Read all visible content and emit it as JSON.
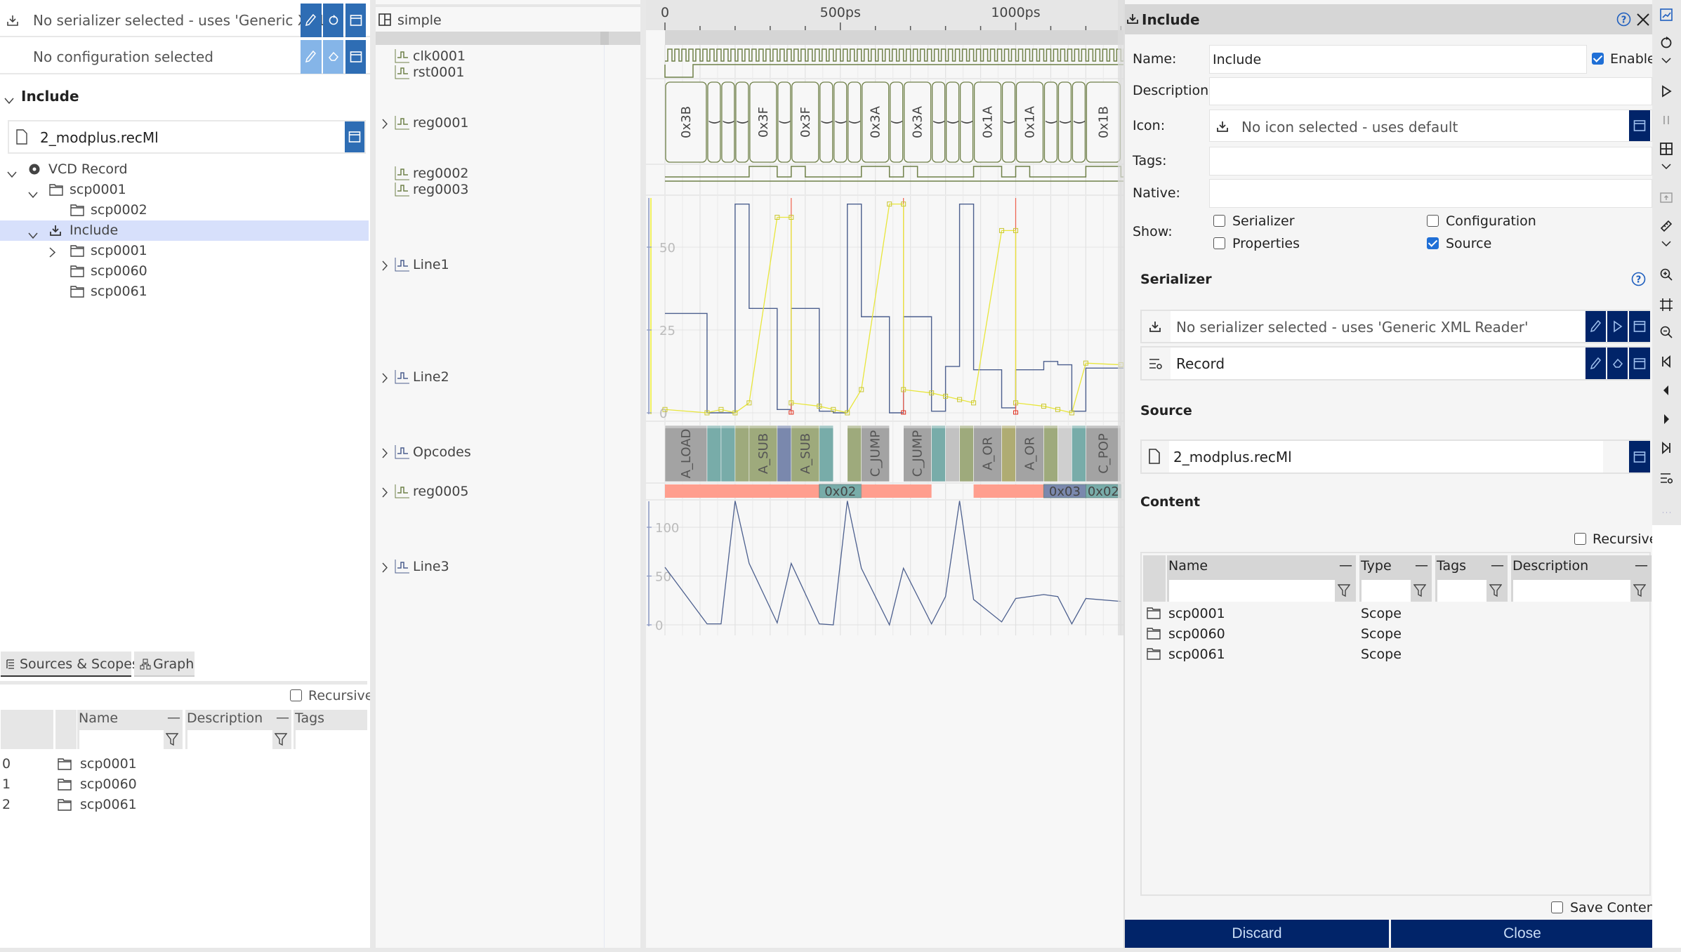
{
  "left": {
    "serializer_text": "No serializer selected - uses 'Generic XML",
    "config_text": "No configuration selected",
    "section_title": "Include",
    "source_file": "2_modplus.recMl",
    "tree": [
      {
        "label": "VCD Record",
        "depth": 0,
        "chevron": "down",
        "icon": "record-icon"
      },
      {
        "label": "scp0001",
        "depth": 1,
        "chevron": "down",
        "icon": "folder-icon"
      },
      {
        "label": "scp0002",
        "depth": 2,
        "chevron": "none",
        "icon": "folder-icon"
      },
      {
        "label": "Include",
        "depth": 1,
        "chevron": "down",
        "icon": "include-icon",
        "selected": true
      },
      {
        "label": "scp0001",
        "depth": 2,
        "chevron": "right",
        "icon": "folder-icon"
      },
      {
        "label": "scp0060",
        "depth": 2,
        "chevron": "none",
        "icon": "folder-icon"
      },
      {
        "label": "scp0061",
        "depth": 2,
        "chevron": "none",
        "icon": "folder-icon"
      }
    ],
    "tabs": [
      {
        "label": "Sources & Scopes",
        "icon": "list-icon",
        "active": true
      },
      {
        "label": "Graph",
        "icon": "graph-icon",
        "active": false
      }
    ],
    "recursive_label": "Recursive",
    "table": {
      "headers": [
        "Name",
        "Description",
        "Tags"
      ],
      "rows": [
        {
          "index": "0",
          "name": "scp0001"
        },
        {
          "index": "1",
          "name": "scp0060"
        },
        {
          "index": "2",
          "name": "scp0061"
        }
      ]
    }
  },
  "signals": {
    "panel_title": "simple",
    "items": [
      {
        "name": "clk0001",
        "expandable": false
      },
      {
        "name": "rst0001",
        "expandable": false
      },
      {
        "name": "reg0001",
        "expandable": true
      },
      {
        "name": "reg0002",
        "expandable": false
      },
      {
        "name": "reg0003",
        "expandable": false
      },
      {
        "name": "Line1",
        "expandable": true
      },
      {
        "name": "Line2",
        "expandable": true
      },
      {
        "name": "Opcodes",
        "expandable": true
      },
      {
        "name": "reg0005",
        "expandable": true
      },
      {
        "name": "Line3",
        "expandable": true
      }
    ]
  },
  "wave": {
    "ruler": [
      {
        "t": 0,
        "label": "0"
      },
      {
        "t": 500,
        "label": "500ps"
      },
      {
        "t": 1000,
        "label": "1000ps"
      }
    ],
    "clk_period_ps": 20,
    "rst_high_from_ps": 80,
    "reg0001": [
      {
        "s": 0,
        "e": 120,
        "label": "0x3B"
      },
      {
        "s": 120,
        "e": 160,
        "label": "("
      },
      {
        "s": 160,
        "e": 200,
        "label": "("
      },
      {
        "s": 200,
        "e": 240,
        "label": "("
      },
      {
        "s": 240,
        "e": 320,
        "label": "0x3F"
      },
      {
        "s": 320,
        "e": 360,
        "label": "("
      },
      {
        "s": 360,
        "e": 440,
        "label": "0x3F"
      },
      {
        "s": 440,
        "e": 480,
        "label": "("
      },
      {
        "s": 480,
        "e": 520,
        "label": "("
      },
      {
        "s": 520,
        "e": 560,
        "label": "("
      },
      {
        "s": 560,
        "e": 640,
        "label": "0x3A"
      },
      {
        "s": 640,
        "e": 680,
        "label": "("
      },
      {
        "s": 680,
        "e": 760,
        "label": "0x3A"
      },
      {
        "s": 760,
        "e": 800,
        "label": "("
      },
      {
        "s": 800,
        "e": 840,
        "label": "("
      },
      {
        "s": 840,
        "e": 880,
        "label": "("
      },
      {
        "s": 880,
        "e": 960,
        "label": "0x1A"
      },
      {
        "s": 960,
        "e": 1000,
        "label": "("
      },
      {
        "s": 1000,
        "e": 1080,
        "label": "0x1A"
      },
      {
        "s": 1080,
        "e": 1120,
        "label": "("
      },
      {
        "s": 1120,
        "e": 1160,
        "label": "("
      },
      {
        "s": 1160,
        "e": 1200,
        "label": "("
      },
      {
        "s": 1200,
        "e": 1300,
        "label": "0x1B"
      }
    ],
    "reg0002_high": [
      [
        240,
        320
      ],
      [
        360,
        400
      ],
      [
        560,
        640
      ],
      [
        680,
        720
      ],
      [
        880,
        960
      ],
      [
        1000,
        1040
      ],
      [
        1200,
        1300
      ]
    ],
    "line1": {
      "ticks": [
        0,
        25,
        50
      ],
      "ymax": 65,
      "step": [
        [
          0,
          30
        ],
        [
          120,
          0
        ],
        [
          200,
          63
        ],
        [
          240,
          31.5
        ],
        [
          320,
          1
        ],
        [
          360,
          31.5
        ],
        [
          440,
          0.5
        ],
        [
          480,
          0
        ],
        [
          520,
          63
        ],
        [
          560,
          29
        ],
        [
          640,
          0
        ],
        [
          680,
          29
        ],
        [
          760,
          0.5
        ],
        [
          800,
          14
        ],
        [
          840,
          63
        ],
        [
          880,
          13
        ],
        [
          960,
          1.5
        ],
        [
          1000,
          13
        ],
        [
          1080,
          15.5
        ],
        [
          1120,
          14.5
        ],
        [
          1160,
          0.5
        ],
        [
          1200,
          13.5
        ]
      ],
      "points": [
        [
          0,
          1
        ],
        [
          120,
          0
        ],
        [
          160,
          1
        ],
        [
          200,
          0
        ],
        [
          240,
          3
        ],
        [
          320,
          59
        ],
        [
          360,
          59
        ],
        [
          360,
          3
        ],
        [
          440,
          2
        ],
        [
          480,
          1
        ],
        [
          520,
          0
        ],
        [
          560,
          7
        ],
        [
          640,
          63
        ],
        [
          680,
          63
        ],
        [
          680,
          7
        ],
        [
          760,
          6
        ],
        [
          800,
          5
        ],
        [
          840,
          4
        ],
        [
          880,
          3
        ],
        [
          960,
          55
        ],
        [
          1000,
          55
        ],
        [
          1000,
          3
        ],
        [
          1080,
          2
        ],
        [
          1120,
          1
        ],
        [
          1160,
          0
        ],
        [
          1200,
          15
        ],
        [
          1300,
          14.5
        ]
      ],
      "markers": [
        360,
        680,
        1000
      ]
    },
    "opcodes": [
      {
        "s": 0,
        "e": 120,
        "label": "A_LOAD",
        "color": "#a3a3a3"
      },
      {
        "s": 120,
        "e": 160,
        "label": "",
        "color": "#78aca9"
      },
      {
        "s": 160,
        "e": 200,
        "label": "",
        "color": "#78aca9"
      },
      {
        "s": 200,
        "e": 240,
        "label": "",
        "color": "#9eaa7c"
      },
      {
        "s": 240,
        "e": 320,
        "label": "A_SUB",
        "color": "#9eaa7c"
      },
      {
        "s": 320,
        "e": 360,
        "label": "",
        "color": "#7a88ad"
      },
      {
        "s": 360,
        "e": 440,
        "label": "A_SUB",
        "color": "#9eaa7c"
      },
      {
        "s": 440,
        "e": 480,
        "label": "",
        "color": "#78aca9"
      },
      {
        "s": 520,
        "e": 560,
        "label": "",
        "color": "#9eaa7c"
      },
      {
        "s": 560,
        "e": 640,
        "label": "C_JUMP",
        "color": "#a3a3a3"
      },
      {
        "s": 680,
        "e": 760,
        "label": "C_JUMP",
        "color": "#a3a3a3"
      },
      {
        "s": 760,
        "e": 800,
        "label": "",
        "color": "#78aca9"
      },
      {
        "s": 800,
        "e": 840,
        "label": "",
        "color": "#c2c2c2"
      },
      {
        "s": 840,
        "e": 880,
        "label": "",
        "color": "#9eaa7c"
      },
      {
        "s": 880,
        "e": 960,
        "label": "A_OR",
        "color": "#a3a3a3"
      },
      {
        "s": 960,
        "e": 1000,
        "label": "",
        "color": "#afac73"
      },
      {
        "s": 1000,
        "e": 1080,
        "label": "A_OR",
        "color": "#a3a3a3"
      },
      {
        "s": 1080,
        "e": 1120,
        "label": "",
        "color": "#9eaa7c"
      },
      {
        "s": 1120,
        "e": 1160,
        "label": "",
        "color": "#cfcfcf"
      },
      {
        "s": 1160,
        "e": 1200,
        "label": "",
        "color": "#78aca9"
      },
      {
        "s": 1200,
        "e": 1300,
        "label": "C_POP",
        "color": "#a3a3a3"
      }
    ],
    "reg0005": [
      {
        "s": 0,
        "e": 440,
        "label": "",
        "color": "#ff9e8e"
      },
      {
        "s": 440,
        "e": 560,
        "label": "0x02",
        "color": "#78aca9"
      },
      {
        "s": 560,
        "e": 760,
        "label": "",
        "color": "#ff9e8e"
      },
      {
        "s": 880,
        "e": 1080,
        "label": "",
        "color": "#ff9e8e"
      },
      {
        "s": 1080,
        "e": 1200,
        "label": "0x03",
        "color": "#7a88ad"
      },
      {
        "s": 1200,
        "e": 1300,
        "label": "0x02",
        "color": "#78aca9"
      }
    ],
    "line3": {
      "ticks": [
        0,
        50,
        100
      ],
      "ymax": 128,
      "points": [
        [
          0,
          59
        ],
        [
          120,
          1
        ],
        [
          160,
          1
        ],
        [
          200,
          127
        ],
        [
          240,
          63
        ],
        [
          320,
          2
        ],
        [
          360,
          63
        ],
        [
          440,
          1
        ],
        [
          480,
          0
        ],
        [
          520,
          127
        ],
        [
          560,
          58
        ],
        [
          640,
          0
        ],
        [
          680,
          58
        ],
        [
          760,
          1
        ],
        [
          800,
          29
        ],
        [
          840,
          127
        ],
        [
          880,
          26
        ],
        [
          960,
          3
        ],
        [
          1000,
          27
        ],
        [
          1080,
          31
        ],
        [
          1120,
          29
        ],
        [
          1160,
          1
        ],
        [
          1200,
          27
        ],
        [
          1300,
          24
        ]
      ]
    }
  },
  "dialog": {
    "title": "Include",
    "name_label": "Name:",
    "name_value": "Include",
    "enable_label": "Enable",
    "enable_checked": true,
    "description_label": "Description:",
    "description_value": "",
    "icon_label": "Icon:",
    "icon_value": "No icon selected - uses default",
    "tags_label": "Tags:",
    "tags_value": "",
    "native_label": "Native:",
    "native_value": "",
    "show_label": "Show:",
    "show_options": [
      {
        "label": "Serializer",
        "checked": false
      },
      {
        "label": "Configuration",
        "checked": false
      },
      {
        "label": "Properties",
        "checked": false
      },
      {
        "label": "Source",
        "checked": true
      }
    ],
    "serializer_heading": "Serializer",
    "serializer_text": "No serializer selected - uses 'Generic XML Reader'",
    "config_text": "Record",
    "source_heading": "Source",
    "source_file": "2_modplus.recMl",
    "content_heading": "Content",
    "recursive_label": "Recursive",
    "content_table": {
      "headers": [
        "Name",
        "Type",
        "Tags",
        "Description"
      ],
      "rows": [
        {
          "name": "scp0001",
          "type": "Scope"
        },
        {
          "name": "scp0060",
          "type": "Scope"
        },
        {
          "name": "scp0061",
          "type": "Scope"
        }
      ]
    },
    "save_content_label": "Save Content",
    "discard_label": "Discard",
    "close_label": "Close"
  },
  "toolbar": {
    "icons": [
      "chart-icon",
      "refresh-icon",
      "chevron-down-icon",
      "play-icon",
      "pause-icon",
      "layout-icon",
      "chevron-down-icon",
      "folder-up-icon",
      "ruler-icon",
      "chevron-down-icon",
      "zoom-in-icon",
      "zoom-fit-icon",
      "zoom-out-icon",
      "skip-start-icon",
      "step-back-icon",
      "step-forward-icon",
      "skip-end-icon",
      "filter-settings-icon",
      "more-icon"
    ]
  },
  "colors": {
    "accent": "#2e6db4",
    "accent_light": "#85b5e8",
    "navy": "#012469",
    "selection": "#d7e0fb",
    "wave_green": "#6f8048",
    "line_blue": "#4c5f8e",
    "line_yellow": "#e6e63a",
    "marker_red": "#f0604d"
  }
}
